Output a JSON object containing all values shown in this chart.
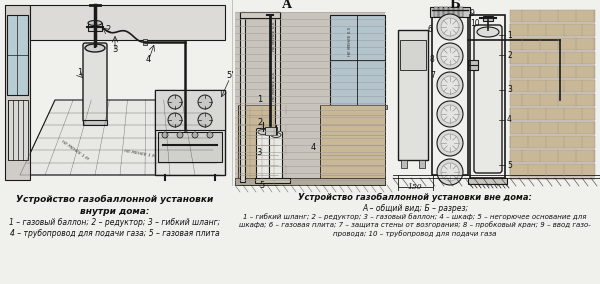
{
  "bg_color": "#f0f0ec",
  "title_left": "Устройство газобаллонной установки\nвнутри дома:",
  "caption_left": "1 – газовый баллон; 2 – редуктор; 3 – гибкий шланг;\n4 – трубопровод для подачи газа; 5 – газовая плита",
  "title_right": "Устройство газобаллонной установки вне дома:",
  "subtitle_right": "А – общий вид; Б – разрез;",
  "caption_right": "1 – гибкий шланг; 2 – редуктор; 3 – газовый баллон; 4 – шкаф; 5 – негорючее основание для\nшкафа; 6 – газовая плита; 7 – защита стены от возгорания; 8 – пробковый кран; 9 – ввод газо-\nпровода; 10 – трубопровод для подачи газа",
  "label_A": "А",
  "label_B": "Б",
  "lc": "#1a1a1a",
  "tc": "#111111",
  "gray_light": "#d8d8d8",
  "gray_med": "#b8b8b8",
  "brick_color": "#d4c4a8",
  "wall_color": "#c8c0b0"
}
